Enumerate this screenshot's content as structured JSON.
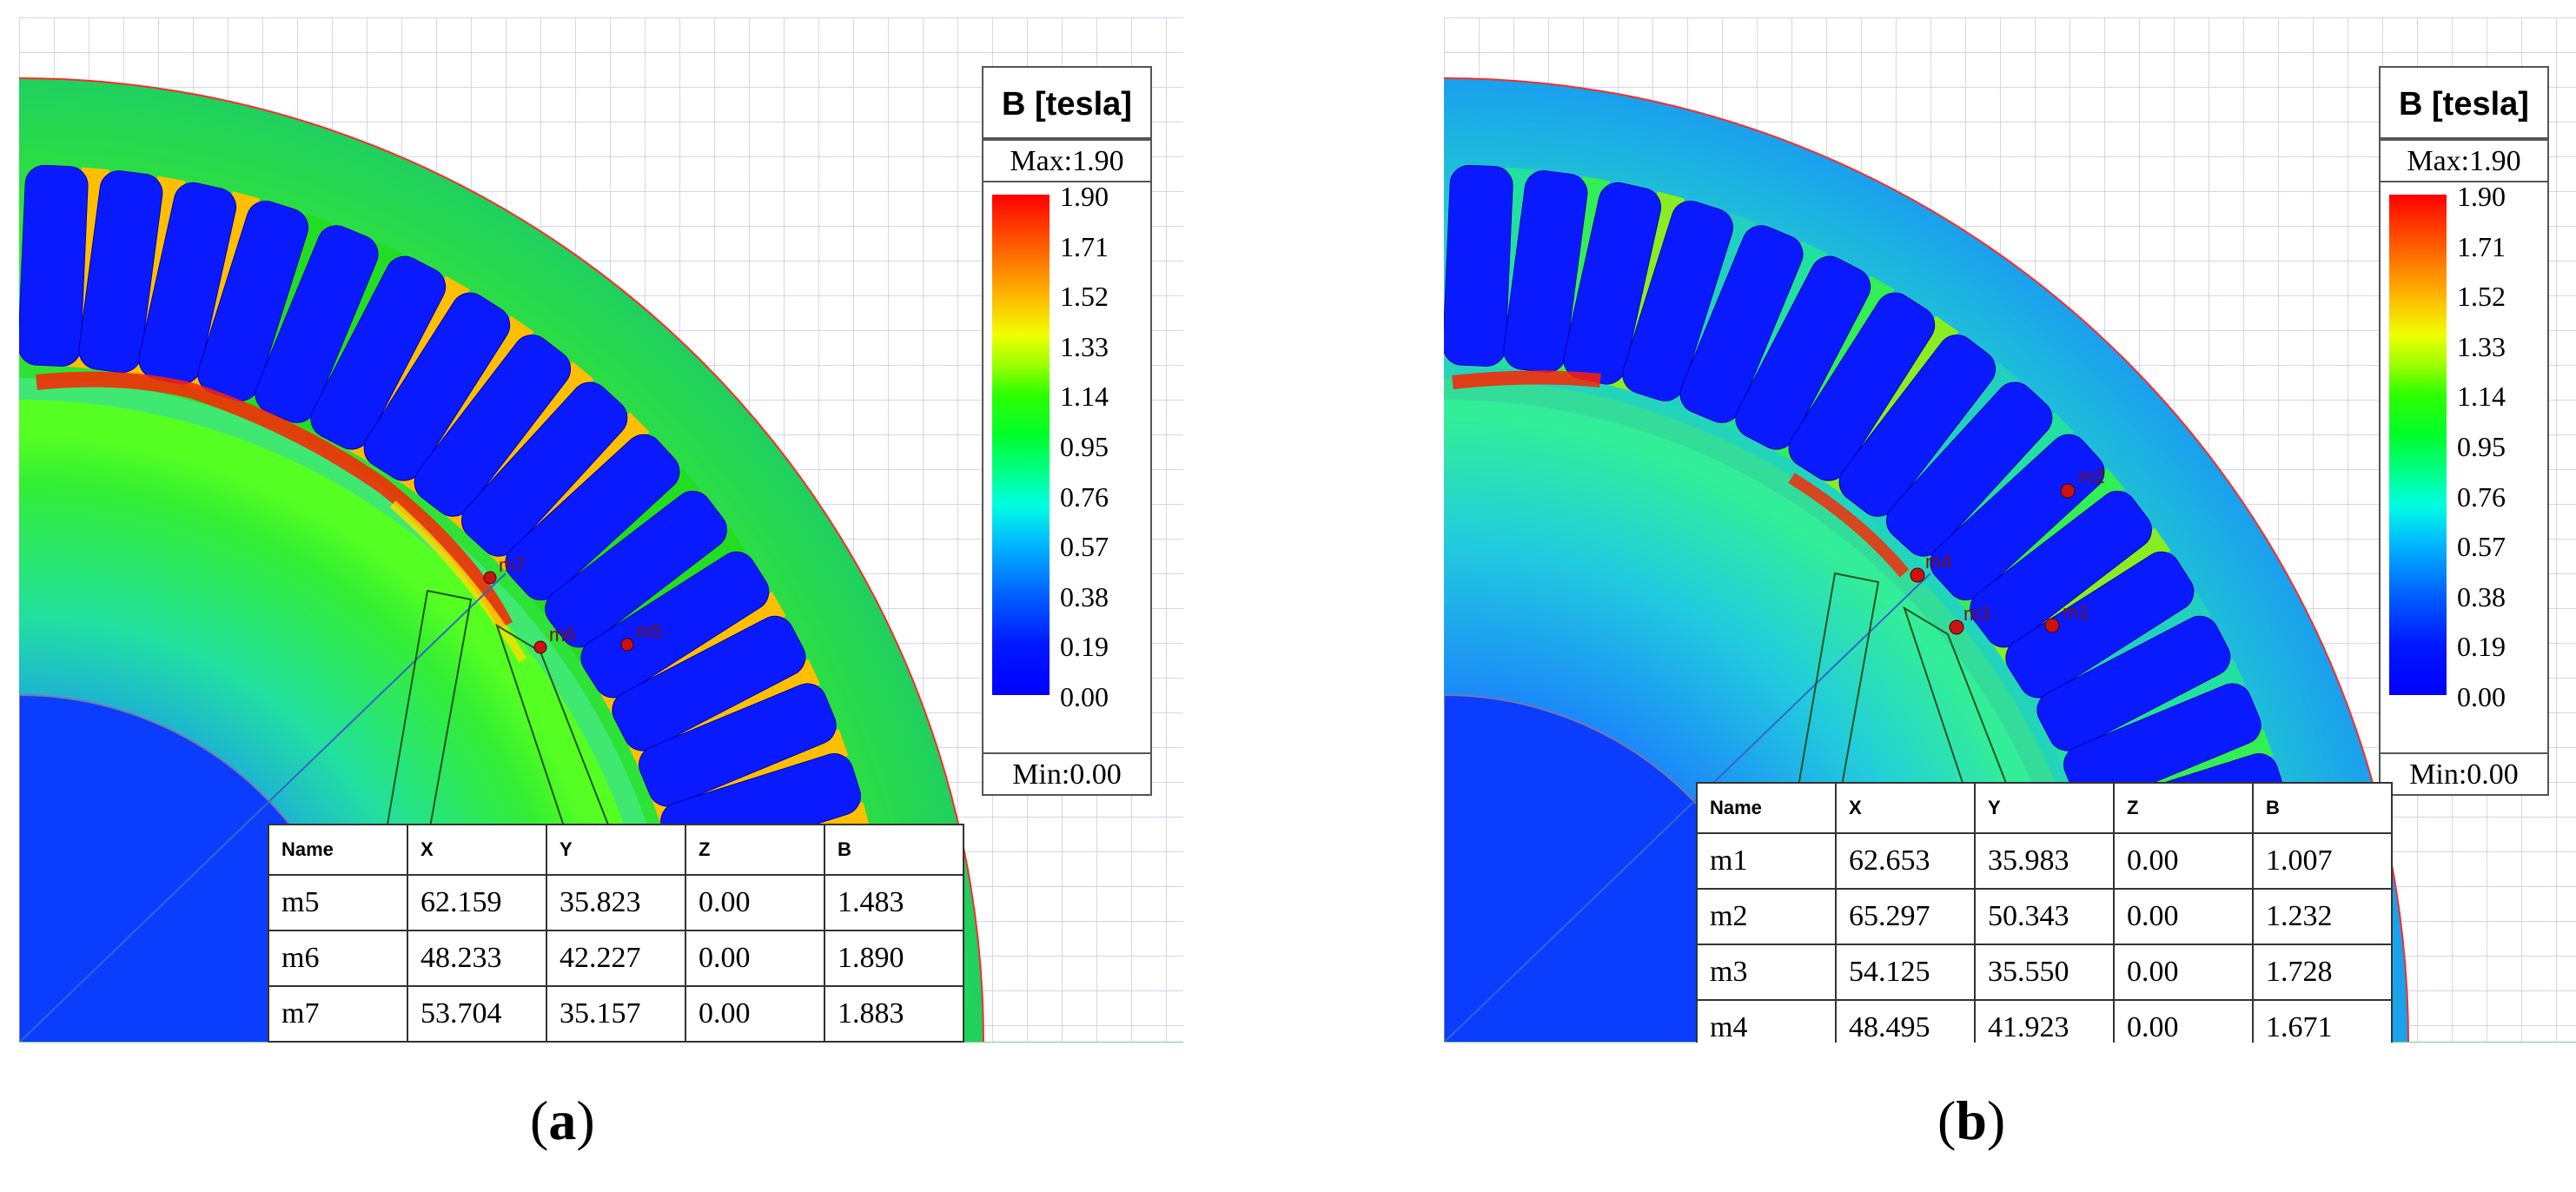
{
  "legend": {
    "title": "B [tesla]",
    "max_label": "Max:1.90",
    "min_label": "Min:0.00",
    "ticks": [
      "1.90",
      "1.71",
      "1.52",
      "1.33",
      "1.14",
      "0.95",
      "0.76",
      "0.57",
      "0.38",
      "0.19",
      "0.00"
    ]
  },
  "table_headers": [
    "Name",
    "X",
    "Y",
    "Z",
    "B"
  ],
  "panel_a": {
    "caption_letter": "a",
    "markers": [
      {
        "name": "m5",
        "x": "62.159",
        "y": "35.823",
        "z": "0.00",
        "b": "1.483"
      },
      {
        "name": "m6",
        "x": "48.233",
        "y": "42.227",
        "z": "0.00",
        "b": "1.890"
      },
      {
        "name": "m7",
        "x": "53.704",
        "y": "35.157",
        "z": "0.00",
        "b": "1.883"
      }
    ],
    "plot_labels": [
      "m5",
      "m7",
      "m6"
    ]
  },
  "panel_b": {
    "caption_letter": "b",
    "markers": [
      {
        "name": "m1",
        "x": "62.653",
        "y": "35.983",
        "z": "0.00",
        "b": "1.007"
      },
      {
        "name": "m2",
        "x": "65.297",
        "y": "50.343",
        "z": "0.00",
        "b": "1.232"
      },
      {
        "name": "m3",
        "x": "54.125",
        "y": "35.550",
        "z": "0.00",
        "b": "1.728"
      },
      {
        "name": "m4",
        "x": "48.495",
        "y": "41.923",
        "z": "0.00",
        "b": "1.671"
      }
    ],
    "plot_labels": [
      "m2",
      "m1",
      "m4",
      "m3"
    ]
  },
  "colors": {
    "field_green": "#22dd22",
    "slot_blue": "#0a1aff",
    "saturated_red": "#ff1a00",
    "tooth_orange": "#ffbf00"
  }
}
